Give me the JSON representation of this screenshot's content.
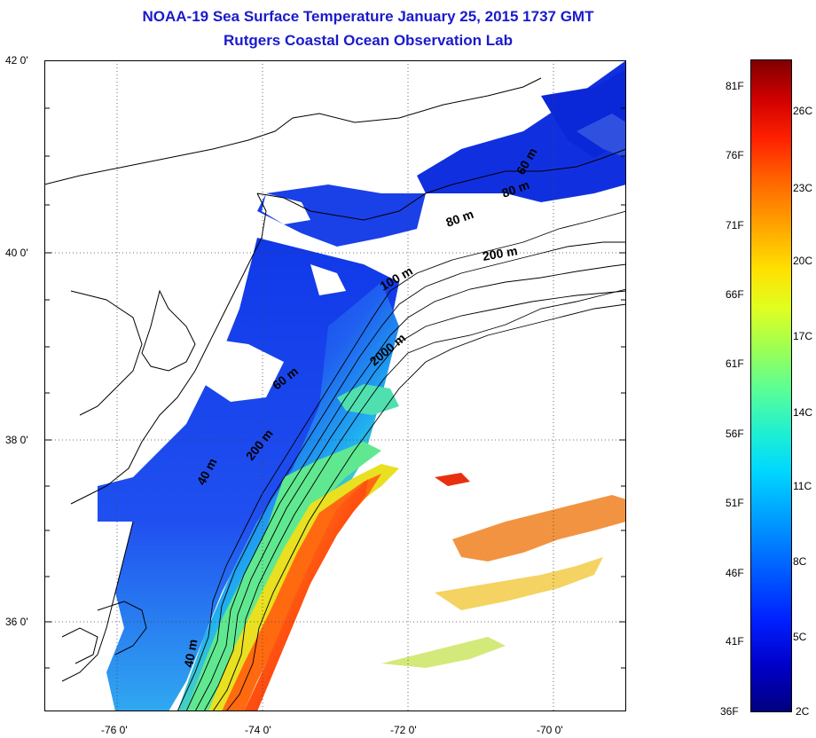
{
  "title": {
    "line1": "NOAA-19 Sea Surface Temperature January 25, 2015 1737 GMT",
    "line2": "Rutgers Coastal Ocean Observation Lab"
  },
  "axes": {
    "lat_labels": [
      "42 0'",
      "40 0'",
      "38 0'",
      "36 0'"
    ],
    "lon_labels": [
      "-76 0'",
      "-74 0'",
      "-72 0'",
      "-70 0'"
    ]
  },
  "isobaths": [
    "40 m",
    "40 m",
    "60 m",
    "80 m",
    "60 m",
    "80 m",
    "100 m",
    "200 m",
    "200 m",
    "2000 m"
  ],
  "colorbar": {
    "fahrenheit": [
      "81F",
      "76F",
      "71F",
      "66F",
      "61F",
      "56F",
      "51F",
      "46F",
      "41F",
      "36F"
    ],
    "celsius": [
      "26C",
      "23C",
      "20C",
      "17C",
      "14C",
      "11C",
      "8C",
      "5C",
      "2C"
    ]
  },
  "colors": {
    "title": "#1a1acc",
    "land": "#ffffff",
    "cold": "#0a2ee6",
    "warm": "#e81a10"
  }
}
